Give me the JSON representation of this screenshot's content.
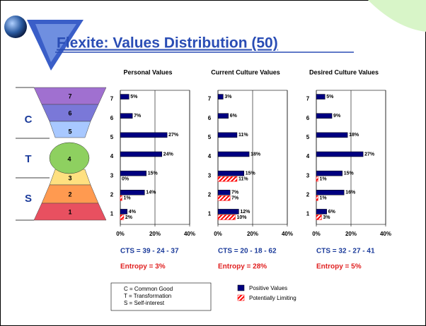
{
  "title": "Flexite: Values Distribution (50)",
  "hourglass": {
    "levels": [
      "7",
      "6",
      "5",
      "4",
      "3",
      "2",
      "1"
    ],
    "groups": [
      "C",
      "T",
      "S"
    ]
  },
  "key": [
    "C = Common Good",
    "T = Transformation",
    "S = Self-interest"
  ],
  "chart_data": [
    {
      "type": "bar",
      "title": "Personal Values",
      "categories": [
        "7",
        "6",
        "5",
        "4",
        "3",
        "2",
        "1"
      ],
      "series": [
        {
          "name": "Positive Values",
          "color": "#000080",
          "values": [
            5,
            7,
            27,
            24,
            15,
            14,
            4
          ],
          "value_labels": [
            "5%",
            "7%",
            "27%",
            "24%",
            "15%",
            "14%",
            "4%"
          ]
        },
        {
          "name": "Potentially Limiting",
          "color": "#ff0000",
          "values": [
            null,
            null,
            null,
            null,
            0,
            1,
            2
          ],
          "value_labels": [
            null,
            null,
            null,
            null,
            "0%",
            "1%",
            "2%"
          ]
        }
      ],
      "xlim": [
        0,
        40
      ],
      "xticks": [
        {
          "value": 0,
          "label": "0%"
        },
        {
          "value": 20,
          "label": "20%"
        },
        {
          "value": 40,
          "label": "40%"
        }
      ],
      "cts": "CTS = 39 - 24 - 37",
      "entropy": "Entropy = 3%"
    },
    {
      "type": "bar",
      "title": "Current Culture Values",
      "categories": [
        "7",
        "6",
        "5",
        "4",
        "3",
        "2",
        "1"
      ],
      "series": [
        {
          "name": "Positive Values",
          "color": "#000080",
          "values": [
            3,
            6,
            11,
            18,
            15,
            7,
            12
          ],
          "value_labels": [
            "3%",
            "6%",
            "11%",
            "18%",
            "15%",
            "7%",
            "12%"
          ]
        },
        {
          "name": "Potentially Limiting",
          "color": "#ff0000",
          "values": [
            null,
            null,
            null,
            null,
            11,
            7,
            10
          ],
          "value_labels": [
            null,
            null,
            null,
            null,
            "11%",
            "7%",
            "10%"
          ]
        }
      ],
      "xlim": [
        0,
        40
      ],
      "xticks": [
        {
          "value": 0,
          "label": "0%"
        },
        {
          "value": 20,
          "label": "20%"
        },
        {
          "value": 40,
          "label": "40%"
        }
      ],
      "cts": "CTS = 20 - 18 - 62",
      "entropy": "Entropy = 28%"
    },
    {
      "type": "bar",
      "title": "Desired Culture Values",
      "categories": [
        "7",
        "6",
        "5",
        "4",
        "3",
        "2",
        "1"
      ],
      "series": [
        {
          "name": "Positive Values",
          "color": "#000080",
          "values": [
            5,
            9,
            18,
            27,
            15,
            16,
            6
          ],
          "value_labels": [
            "5%",
            "9%",
            "18%",
            "27%",
            "15%",
            "16%",
            "6%"
          ]
        },
        {
          "name": "Potentially Limiting",
          "color": "#ff0000",
          "values": [
            null,
            null,
            null,
            null,
            1,
            1,
            3
          ],
          "value_labels": [
            null,
            null,
            null,
            null,
            "1%",
            "1%",
            "3%"
          ]
        }
      ],
      "xlim": [
        0,
        40
      ],
      "xticks": [
        {
          "value": 0,
          "label": "0%"
        },
        {
          "value": 20,
          "label": "20%"
        },
        {
          "value": 40,
          "label": "40%"
        }
      ],
      "cts": "CTS = 32 - 27 - 41",
      "entropy": "Entropy = 5%"
    }
  ]
}
